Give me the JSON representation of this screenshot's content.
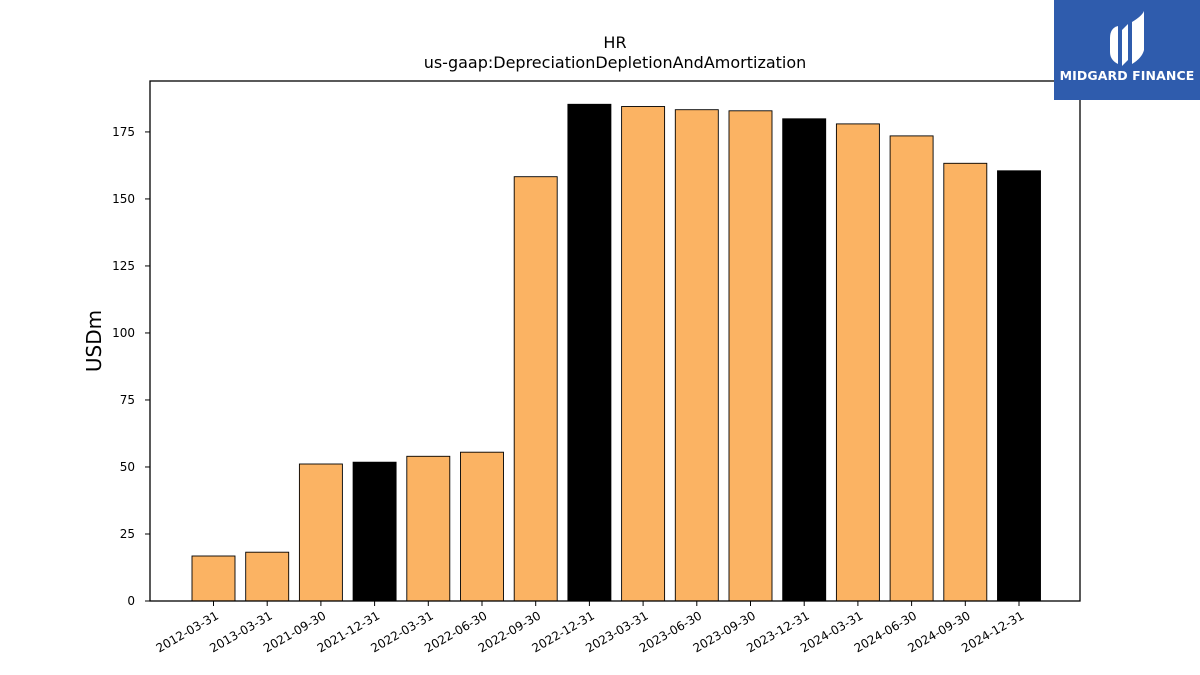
{
  "brand": {
    "name": "MIDGARD FINANCE",
    "bg_color": "#2f5cad"
  },
  "chart_data": {
    "type": "bar",
    "title": "HR",
    "subtitle": "us-gaap:DepreciationDepletionAndAmortization",
    "xlabel": "",
    "ylabel": "USDm",
    "ylim": [
      0,
      194
    ],
    "yticks": [
      0,
      25,
      50,
      75,
      100,
      125,
      150,
      175
    ],
    "grid": false,
    "categories": [
      "2012-03-31",
      "2013-03-31",
      "2021-09-30",
      "2021-12-31",
      "2022-03-31",
      "2022-06-30",
      "2022-09-30",
      "2022-12-31",
      "2023-03-31",
      "2023-06-30",
      "2023-09-30",
      "2023-12-31",
      "2024-03-31",
      "2024-06-30",
      "2024-09-30",
      "2024-12-31"
    ],
    "values": [
      16.8,
      18.2,
      51.1,
      51.8,
      54.0,
      55.5,
      158.3,
      185.3,
      184.5,
      183.3,
      182.9,
      179.9,
      178.0,
      173.5,
      163.3,
      160.5
    ],
    "bar_colors": [
      "#fbb363",
      "#fbb363",
      "#fbb363",
      "#000000",
      "#fbb363",
      "#fbb363",
      "#fbb363",
      "#000000",
      "#fbb363",
      "#fbb363",
      "#fbb363",
      "#000000",
      "#fbb363",
      "#fbb363",
      "#fbb363",
      "#000000"
    ]
  }
}
